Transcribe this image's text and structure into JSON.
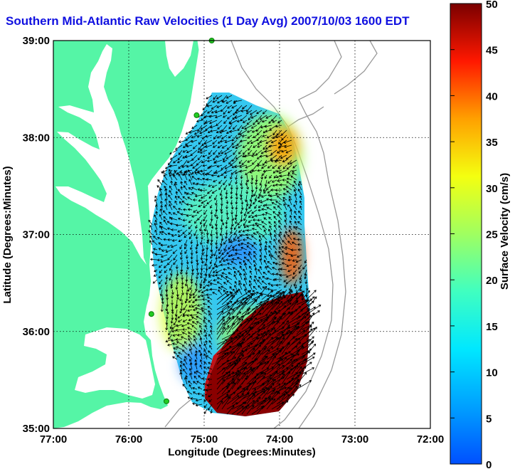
{
  "title": "Southern Mid-Atlantic Raw Velocities (1 Day Avg) 2007/10/03 1600 EDT",
  "x_axis": {
    "label": "Longitude (Degrees:Minutes)",
    "ticks": [
      "77:00",
      "76:00",
      "75:00",
      "74:00",
      "73:00",
      "72:00"
    ]
  },
  "y_axis": {
    "label": "Latitude (Degrees:Minutes)",
    "ticks": [
      "39:00",
      "38:00",
      "37:00",
      "36:00",
      "35:00"
    ]
  },
  "colorbar": {
    "label": "Surface Velocity (cm/s)",
    "ticks": [
      "50",
      "45",
      "40",
      "35",
      "30",
      "25",
      "20",
      "15",
      "10",
      "5",
      "0"
    ],
    "range": [
      0,
      50
    ],
    "colormap": "jet"
  },
  "colors": {
    "land": "#55f5a6",
    "title": "#1010e0",
    "station": "#22cc22",
    "bathymetry": "#9a9a9a"
  },
  "map": {
    "lon_range": [
      -77,
      -72
    ],
    "lat_range": [
      35,
      39
    ],
    "grid": true,
    "stations": [
      {
        "lon": -74.9,
        "lat": 39.0
      },
      {
        "lon": -75.1,
        "lat": 38.23
      },
      {
        "lon": -75.7,
        "lat": 36.18
      },
      {
        "lon": -75.5,
        "lat": 35.28
      }
    ]
  }
}
